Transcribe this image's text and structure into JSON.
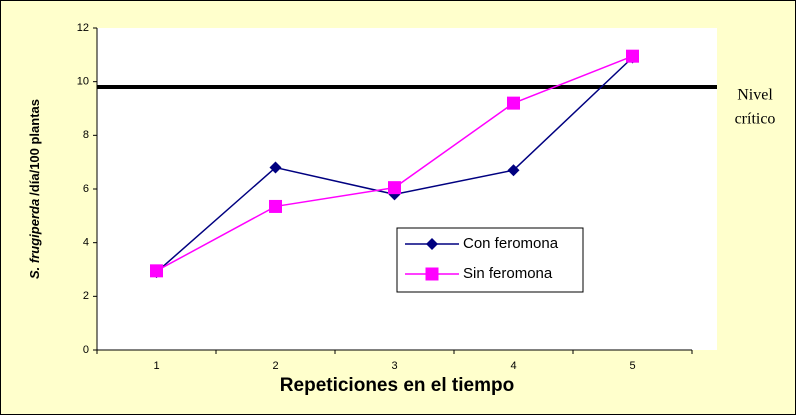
{
  "chart_data": {
    "type": "line",
    "x_label": "Repeticiones en el tiempo",
    "y_label": [
      "S. frugiperda",
      "/día/100 plantas"
    ],
    "categories": [
      "1",
      "2",
      "3",
      "4",
      "5"
    ],
    "series": [
      {
        "name": "Con feromona",
        "color": "#000080",
        "marker": "diamond",
        "values": [
          2.9,
          6.8,
          5.8,
          6.7,
          10.9
        ]
      },
      {
        "name": "Sin feromona",
        "color": "#ff00ff",
        "marker": "square",
        "values": [
          2.95,
          5.35,
          6.05,
          9.2,
          10.95
        ]
      }
    ],
    "threshold": {
      "text": [
        "Nivel",
        "crítico"
      ],
      "value": 9.8,
      "color": "#000000"
    },
    "ylim": [
      0,
      12
    ],
    "yticks": [
      0,
      2,
      4,
      6,
      8,
      10,
      12
    ],
    "legend": "inside"
  }
}
